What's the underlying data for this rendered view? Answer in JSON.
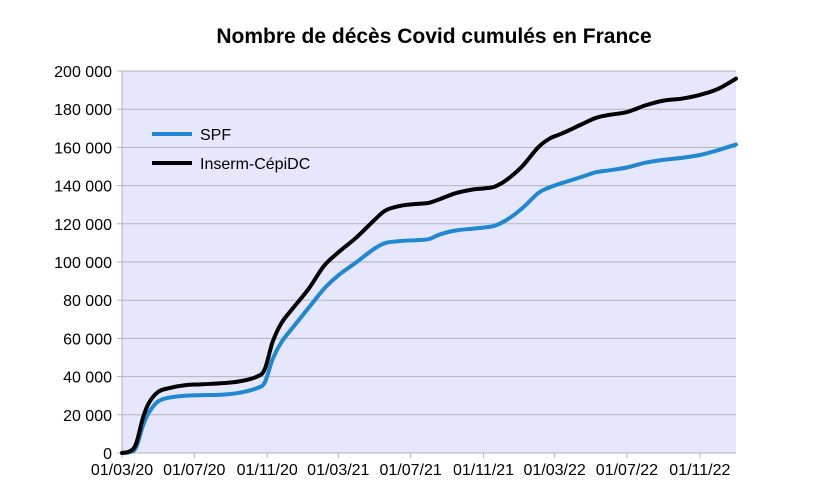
{
  "chart_data": {
    "type": "line",
    "title": "Nombre de décès Covid cumulés en France",
    "xlabel": "",
    "ylabel": "",
    "ylim": [
      0,
      200000
    ],
    "xlim": [
      "2020-03-01",
      "2023-01-01"
    ],
    "y_ticks": [
      0,
      20000,
      40000,
      60000,
      80000,
      100000,
      120000,
      140000,
      160000,
      180000,
      200000
    ],
    "y_tick_labels": [
      "0",
      "20 000",
      "40 000",
      "60 000",
      "80 000",
      "100 000",
      "120 000",
      "140 000",
      "160 000",
      "180 000",
      "200 000"
    ],
    "x_ticks": [
      "2020-03-01",
      "2020-07-01",
      "2020-11-01",
      "2021-03-01",
      "2021-07-01",
      "2021-11-01",
      "2022-03-01",
      "2022-07-01",
      "2022-11-01"
    ],
    "x_tick_labels": [
      "01/03/20",
      "01/07/20",
      "01/11/20",
      "01/03/21",
      "01/07/21",
      "01/11/21",
      "01/03/22",
      "01/07/22",
      "01/11/22"
    ],
    "grid": "horizontal",
    "plot_background": "#e6e6ff",
    "legend_position": "top-left",
    "series": [
      {
        "name": "SPF",
        "color": "#1f88d0",
        "x": [
          "2020-03-01",
          "2020-03-15",
          "2020-03-25",
          "2020-04-05",
          "2020-04-15",
          "2020-05-01",
          "2020-05-20",
          "2020-06-15",
          "2020-07-15",
          "2020-08-15",
          "2020-09-15",
          "2020-10-15",
          "2020-10-28",
          "2020-11-10",
          "2020-11-25",
          "2020-12-15",
          "2021-01-10",
          "2021-02-05",
          "2021-03-01",
          "2021-04-01",
          "2021-05-01",
          "2021-05-20",
          "2021-06-15",
          "2021-07-15",
          "2021-08-01",
          "2021-08-20",
          "2021-09-15",
          "2021-10-15",
          "2021-11-01",
          "2021-11-20",
          "2021-12-10",
          "2022-01-05",
          "2022-02-01",
          "2022-02-20",
          "2022-03-15",
          "2022-04-15",
          "2022-05-10",
          "2022-06-01",
          "2022-07-01",
          "2022-08-01",
          "2022-09-01",
          "2022-10-01",
          "2022-11-01",
          "2022-12-01",
          "2023-01-01"
        ],
        "y": [
          0,
          500,
          3000,
          14000,
          21000,
          27000,
          29000,
          30000,
          30300,
          30500,
          31500,
          34000,
          37000,
          49000,
          58000,
          66000,
          76000,
          86000,
          93000,
          100000,
          107000,
          110000,
          111000,
          111500,
          112000,
          114500,
          116500,
          117500,
          118000,
          119000,
          122000,
          128000,
          136000,
          139000,
          141500,
          144500,
          147000,
          148000,
          149500,
          152000,
          153500,
          154500,
          156000,
          158500,
          161500
        ]
      },
      {
        "name": "Inserm-CépiDC",
        "color": "#000000",
        "x": [
          "2020-03-01",
          "2020-03-15",
          "2020-03-25",
          "2020-04-05",
          "2020-04-15",
          "2020-05-01",
          "2020-05-20",
          "2020-06-15",
          "2020-07-15",
          "2020-08-15",
          "2020-09-15",
          "2020-10-15",
          "2020-10-28",
          "2020-11-10",
          "2020-11-25",
          "2020-12-15",
          "2021-01-10",
          "2021-02-05",
          "2021-03-01",
          "2021-04-01",
          "2021-05-01",
          "2021-05-20",
          "2021-06-15",
          "2021-07-15",
          "2021-08-01",
          "2021-08-20",
          "2021-09-15",
          "2021-10-15",
          "2021-11-01",
          "2021-11-20",
          "2021-12-10",
          "2022-01-05",
          "2022-02-01",
          "2022-02-20",
          "2022-03-15",
          "2022-04-15",
          "2022-05-10",
          "2022-06-01",
          "2022-07-01",
          "2022-08-01",
          "2022-09-01",
          "2022-10-01",
          "2022-11-01",
          "2022-12-01",
          "2023-01-01"
        ],
        "y": [
          0,
          1000,
          5000,
          18000,
          26000,
          32000,
          34000,
          35500,
          36000,
          36500,
          37500,
          40000,
          44000,
          58000,
          68000,
          76000,
          86000,
          98000,
          105000,
          113000,
          122000,
          127000,
          129500,
          130500,
          131000,
          133000,
          136000,
          138000,
          138500,
          139500,
          143000,
          150000,
          160000,
          164500,
          167500,
          172000,
          175500,
          177000,
          178500,
          182000,
          184500,
          185500,
          187500,
          190500,
          196000
        ]
      }
    ]
  }
}
